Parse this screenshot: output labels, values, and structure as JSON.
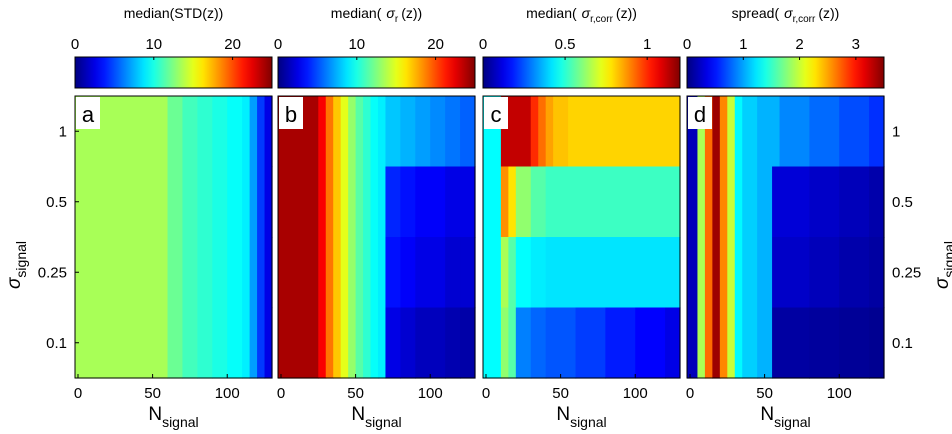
{
  "chart_data": {
    "type": "heatmap",
    "colormap": "jet (dark blue → cyan → green → yellow → red)",
    "x_axis": {
      "label": "N",
      "label_subscript": "signal",
      "range": [
        -2,
        130
      ],
      "ticks": [
        "0",
        "50",
        "100"
      ]
    },
    "y_axis": {
      "label": "σ",
      "label_subscript": "signal",
      "categories": [
        "0.1",
        "0.25",
        "0.5",
        "1"
      ]
    },
    "panels": [
      {
        "letter": "a",
        "colorbar": {
          "title": "median(STD(z))",
          "range": [
            0,
            25
          ],
          "ticks": [
            "0",
            "10",
            "20"
          ]
        },
        "columns_per_row": [
          {
            "row": "1",
            "columns": [
              [
                0,
                13.5
              ],
              [
                60,
                12.0
              ],
              [
                70,
                11.0
              ],
              [
                80,
                10.5
              ],
              [
                90,
                10.0
              ],
              [
                100,
                9.5
              ],
              [
                110,
                9.0
              ],
              [
                115,
                7.0
              ],
              [
                120,
                4.5
              ],
              [
                125,
                2.5
              ]
            ]
          },
          {
            "row": "0.5",
            "columns": [
              [
                0,
                13.5
              ],
              [
                60,
                12.0
              ],
              [
                70,
                11.0
              ],
              [
                80,
                10.5
              ],
              [
                90,
                10.0
              ],
              [
                100,
                9.5
              ],
              [
                110,
                9.0
              ],
              [
                115,
                7.0
              ],
              [
                120,
                4.5
              ],
              [
                125,
                2.5
              ]
            ]
          },
          {
            "row": "0.25",
            "columns": [
              [
                0,
                13.5
              ],
              [
                60,
                12.0
              ],
              [
                70,
                11.0
              ],
              [
                80,
                10.5
              ],
              [
                90,
                10.0
              ],
              [
                100,
                9.5
              ],
              [
                110,
                9.0
              ],
              [
                115,
                7.0
              ],
              [
                120,
                4.5
              ],
              [
                125,
                2.5
              ]
            ]
          },
          {
            "row": "0.1",
            "columns": [
              [
                0,
                13.5
              ],
              [
                60,
                12.0
              ],
              [
                70,
                11.0
              ],
              [
                80,
                10.5
              ],
              [
                90,
                10.0
              ],
              [
                100,
                9.5
              ],
              [
                110,
                9.0
              ],
              [
                115,
                7.0
              ],
              [
                120,
                4.5
              ],
              [
                125,
                2.5
              ]
            ]
          }
        ]
      },
      {
        "letter": "b",
        "colorbar": {
          "title": "median(",
          "title_symbol": "σ",
          "title_subscript": "r",
          "title_suffix": "(z))",
          "range": [
            0,
            25
          ],
          "ticks": [
            "0",
            "10",
            "20"
          ]
        },
        "columns_per_row": [
          {
            "row": "1",
            "columns": [
              [
                0,
                24
              ],
              [
                25,
                22
              ],
              [
                30,
                19
              ],
              [
                35,
                17
              ],
              [
                40,
                15
              ],
              [
                45,
                13
              ],
              [
                50,
                11.5
              ],
              [
                55,
                10.5
              ],
              [
                60,
                9.5
              ],
              [
                65,
                9
              ],
              [
                70,
                8
              ],
              [
                80,
                7.5
              ],
              [
                90,
                7
              ],
              [
                100,
                6.5
              ],
              [
                110,
                6
              ],
              [
                120,
                5.5
              ]
            ]
          },
          {
            "row": "0.5",
            "columns": [
              [
                0,
                24
              ],
              [
                25,
                22
              ],
              [
                30,
                19
              ],
              [
                35,
                17
              ],
              [
                40,
                15
              ],
              [
                45,
                13
              ],
              [
                50,
                11.5
              ],
              [
                55,
                10.5
              ],
              [
                60,
                9.5
              ],
              [
                65,
                9
              ],
              [
                70,
                4
              ],
              [
                80,
                3.5
              ],
              [
                90,
                3
              ],
              [
                100,
                3
              ],
              [
                110,
                2.5
              ],
              [
                120,
                2.5
              ]
            ]
          },
          {
            "row": "0.25",
            "columns": [
              [
                0,
                24
              ],
              [
                25,
                22
              ],
              [
                30,
                19
              ],
              [
                35,
                17
              ],
              [
                40,
                15
              ],
              [
                45,
                13
              ],
              [
                50,
                11.5
              ],
              [
                55,
                10.5
              ],
              [
                60,
                9.5
              ],
              [
                65,
                9
              ],
              [
                70,
                3.5
              ],
              [
                80,
                3
              ],
              [
                90,
                2.5
              ],
              [
                100,
                2.5
              ],
              [
                110,
                2
              ],
              [
                120,
                2
              ]
            ]
          },
          {
            "row": "0.1",
            "columns": [
              [
                0,
                24
              ],
              [
                25,
                22
              ],
              [
                30,
                19
              ],
              [
                35,
                17
              ],
              [
                40,
                15
              ],
              [
                45,
                13
              ],
              [
                50,
                11.5
              ],
              [
                55,
                10.5
              ],
              [
                60,
                9.5
              ],
              [
                65,
                9
              ],
              [
                70,
                2.5
              ],
              [
                80,
                2
              ],
              [
                90,
                1.5
              ],
              [
                100,
                1.5
              ],
              [
                110,
                1.2
              ],
              [
                120,
                1
              ]
            ]
          }
        ]
      },
      {
        "letter": "c",
        "colorbar": {
          "title": "median(",
          "title_symbol": "σ",
          "title_subscript": "r,corr",
          "title_suffix": "(z))",
          "range": [
            0,
            1.2
          ],
          "ticks": [
            "0",
            "0.5",
            "1"
          ]
        },
        "columns_per_row": [
          {
            "row": "1",
            "columns": [
              [
                0,
                0.45
              ],
              [
                10,
                1.12
              ],
              [
                30,
                1.0
              ],
              [
                35,
                0.92
              ],
              [
                40,
                0.86
              ],
              [
                45,
                0.82
              ],
              [
                55,
                0.8
              ]
            ]
          },
          {
            "row": "0.5",
            "columns": [
              [
                0,
                0.45
              ],
              [
                10,
                0.88
              ],
              [
                15,
                0.78
              ],
              [
                20,
                0.62
              ],
              [
                30,
                0.55
              ],
              [
                40,
                0.52
              ]
            ]
          },
          {
            "row": "0.25",
            "columns": [
              [
                0,
                0.45
              ],
              [
                10,
                0.65
              ],
              [
                15,
                0.55
              ],
              [
                20,
                0.45
              ],
              [
                30,
                0.43
              ],
              [
                40,
                0.42
              ]
            ]
          },
          {
            "row": "0.1",
            "columns": [
              [
                0,
                0.45
              ],
              [
                10,
                0.62
              ],
              [
                15,
                0.55
              ],
              [
                20,
                0.3
              ],
              [
                30,
                0.27
              ],
              [
                40,
                0.25
              ],
              [
                60,
                0.22
              ],
              [
                80,
                0.18
              ],
              [
                100,
                0.15
              ],
              [
                120,
                0.12
              ]
            ]
          }
        ]
      },
      {
        "letter": "d",
        "colorbar": {
          "title": "spread(",
          "title_symbol": "σ",
          "title_subscript": "r,corr",
          "title_suffix": "(z))",
          "range": [
            0,
            3.5
          ],
          "ticks": [
            "0",
            "1",
            "2",
            "3"
          ]
        },
        "columns_per_row": [
          {
            "row": "1",
            "columns": [
              [
                0,
                0.2
              ],
              [
                5,
                1.9
              ],
              [
                10,
                2.7
              ],
              [
                15,
                3.4
              ],
              [
                20,
                2.6
              ],
              [
                25,
                2.0
              ],
              [
                30,
                1.3
              ],
              [
                35,
                1.15
              ],
              [
                45,
                1.05
              ],
              [
                60,
                0.9
              ],
              [
                80,
                0.8
              ],
              [
                100,
                0.7
              ],
              [
                120,
                0.6
              ]
            ]
          },
          {
            "row": "0.5",
            "columns": [
              [
                0,
                0.2
              ],
              [
                5,
                1.9
              ],
              [
                10,
                2.7
              ],
              [
                15,
                3.4
              ],
              [
                20,
                2.6
              ],
              [
                25,
                2.0
              ],
              [
                30,
                1.3
              ],
              [
                35,
                1.15
              ],
              [
                45,
                1.05
              ],
              [
                55,
                0.3
              ],
              [
                80,
                0.25
              ],
              [
                100,
                0.2
              ],
              [
                120,
                0.15
              ]
            ]
          },
          {
            "row": "0.25",
            "columns": [
              [
                0,
                0.2
              ],
              [
                5,
                1.9
              ],
              [
                10,
                2.7
              ],
              [
                15,
                3.4
              ],
              [
                20,
                2.6
              ],
              [
                25,
                2.0
              ],
              [
                30,
                1.3
              ],
              [
                35,
                1.15
              ],
              [
                45,
                1.05
              ],
              [
                55,
                0.25
              ],
              [
                80,
                0.2
              ],
              [
                100,
                0.15
              ],
              [
                120,
                0.12
              ]
            ]
          },
          {
            "row": "0.1",
            "columns": [
              [
                0,
                0.2
              ],
              [
                5,
                1.9
              ],
              [
                10,
                2.7
              ],
              [
                15,
                3.4
              ],
              [
                20,
                2.6
              ],
              [
                25,
                2.0
              ],
              [
                30,
                1.3
              ],
              [
                35,
                1.15
              ],
              [
                45,
                1.05
              ],
              [
                55,
                0.12
              ],
              [
                80,
                0.1
              ],
              [
                100,
                0.08
              ],
              [
                120,
                0.06
              ]
            ]
          }
        ]
      }
    ]
  }
}
